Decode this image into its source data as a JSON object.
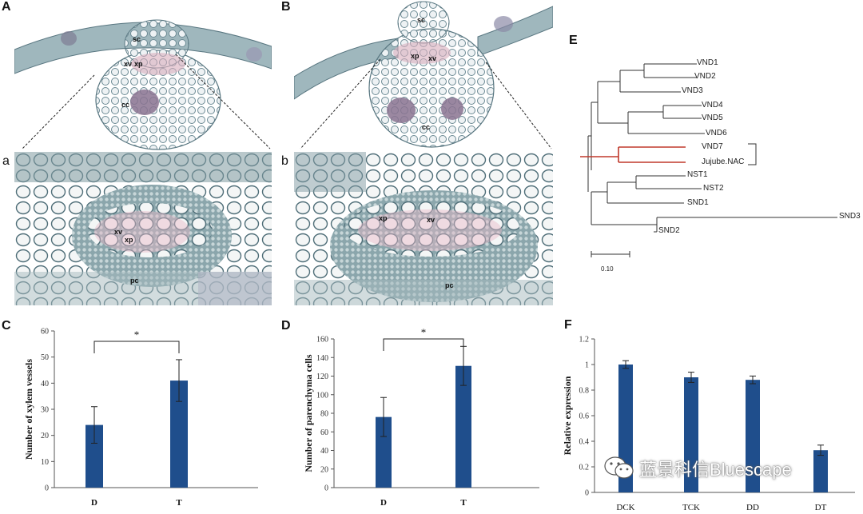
{
  "panels": {
    "A": "A",
    "B": "B",
    "a": "a",
    "b": "b",
    "C": "C",
    "D": "D",
    "E": "E",
    "F": "F"
  },
  "micro_labels": {
    "A_sc": "sc",
    "A_xv": "xv",
    "A_xp": "xp",
    "A_cc": "cc",
    "B_sc": "sc",
    "B_xp": "xp",
    "B_xv": "xv",
    "B_cc": "cc",
    "a_xv": "xv",
    "a_xp": "xp",
    "a_pc": "pc",
    "b_xp": "xp",
    "b_xv": "xv",
    "b_pc": "pc"
  },
  "tree": {
    "labels": [
      "VND1",
      "VND2",
      "VND3",
      "VND4",
      "VND5",
      "VND6",
      "VND7",
      "Jujube.NAC",
      "NST1",
      "NST2",
      "SND1",
      "SND3",
      "SND2"
    ],
    "scale_label": "0.10",
    "highlight_color": "#c0392b"
  },
  "watermark": {
    "text": "蓝景科信Bluescape",
    "icon": "wechat-icon"
  },
  "colors": {
    "bar": "#1f4e8c"
  },
  "chart_data": [
    {
      "id": "C",
      "type": "bar",
      "categories": [
        "D",
        "T"
      ],
      "values": [
        24,
        41
      ],
      "errors": [
        7,
        8
      ],
      "ylabel": "Number of xylem vessels",
      "ylim": [
        0,
        60
      ],
      "yticks": [
        0,
        10,
        20,
        30,
        40,
        50,
        60
      ],
      "significance": "*"
    },
    {
      "id": "D",
      "type": "bar",
      "categories": [
        "D",
        "T"
      ],
      "values": [
        76,
        131
      ],
      "errors": [
        21,
        21
      ],
      "ylabel": "Number of parenchyma cells",
      "ylim": [
        0,
        160
      ],
      "yticks": [
        0,
        20,
        40,
        60,
        80,
        100,
        120,
        140,
        160
      ],
      "significance": "*"
    },
    {
      "id": "F",
      "type": "bar",
      "categories": [
        "DCK",
        "TCK",
        "DD",
        "DT"
      ],
      "values": [
        1.0,
        0.9,
        0.88,
        0.33
      ],
      "errors": [
        0.03,
        0.04,
        0.03,
        0.04
      ],
      "ylabel": "Relative expression",
      "ylim": [
        0,
        1.2
      ],
      "yticks": [
        "0",
        "0.2",
        "0.4",
        "0.6",
        "0.8",
        "1",
        "1.2"
      ]
    }
  ]
}
